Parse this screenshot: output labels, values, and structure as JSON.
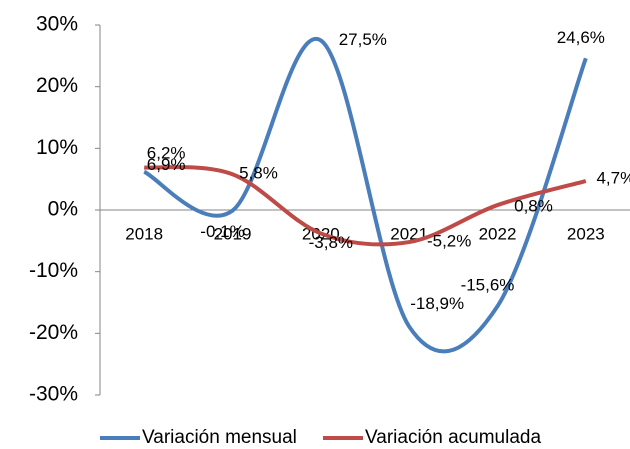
{
  "chart_data": {
    "type": "line",
    "categories": [
      "2018",
      "2019",
      "2020",
      "2021",
      "2022",
      "2023"
    ],
    "series": [
      {
        "name": "Variación mensual",
        "color": "#4a7ebb",
        "values": [
          6.2,
          -0.1,
          27.5,
          -18.9,
          -15.6,
          24.6
        ],
        "value_labels": [
          "6,2%",
          "-0,1%",
          "27,5%",
          "-18,9%",
          "-15,6%",
          "24,6%"
        ]
      },
      {
        "name": "Variación acumulada",
        "color": "#be4b48",
        "values": [
          6.9,
          5.8,
          -3.8,
          -5.2,
          0.8,
          4.7
        ],
        "value_labels": [
          "6,9%",
          "5,8%",
          "-3,8%",
          "-5,2%",
          "0,8%",
          "4,7%"
        ]
      }
    ],
    "ylim": [
      -30,
      30
    ],
    "yticks": [
      {
        "value": -30,
        "label": "-30%"
      },
      {
        "value": -20,
        "label": "-20%"
      },
      {
        "value": -10,
        "label": "-10%"
      },
      {
        "value": 0,
        "label": "0%"
      },
      {
        "value": 10,
        "label": "10%"
      },
      {
        "value": 20,
        "label": "20%"
      },
      {
        "value": 30,
        "label": "30%"
      }
    ],
    "smooth": true,
    "legend": "bottom"
  }
}
